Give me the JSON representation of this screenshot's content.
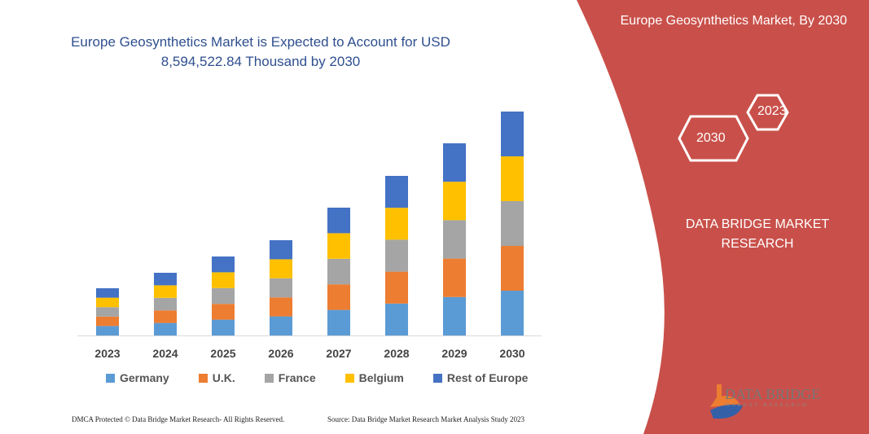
{
  "chart_data": {
    "type": "bar",
    "stacked": true,
    "title": "Europe Geosynthetics Market is Expected to Account for USD 8,594,522.84 Thousand by 2030",
    "categories": [
      "2023",
      "2024",
      "2025",
      "2026",
      "2027",
      "2028",
      "2029",
      "2030"
    ],
    "series": [
      {
        "name": "Germany",
        "color": "#5b9bd5",
        "values": [
          11.6,
          15.4,
          19.4,
          23.4,
          31.4,
          39.2,
          47.2,
          55
        ]
      },
      {
        "name": "U.K.",
        "color": "#ed7d31",
        "values": [
          11.6,
          15.4,
          19.4,
          23.4,
          31.4,
          39.2,
          47.2,
          55
        ]
      },
      {
        "name": "France",
        "color": "#a5a5a5",
        "values": [
          11.6,
          15.4,
          19.4,
          23.4,
          31.4,
          39.2,
          47.2,
          55
        ]
      },
      {
        "name": "Belgium",
        "color": "#ffc000",
        "values": [
          11.6,
          15.4,
          19.4,
          23.4,
          31.4,
          39.2,
          47.2,
          55
        ]
      },
      {
        "name": "Rest of Europe",
        "color": "#4472c4",
        "values": [
          11.6,
          15.4,
          19.4,
          23.4,
          31.4,
          39.2,
          47.2,
          55
        ]
      }
    ],
    "y_axis_shown": false,
    "grid": false,
    "legend_position": "bottom"
  },
  "panel": {
    "title": "Europe Geosynthetics Market, By 2030",
    "hex1": "2023",
    "hex2": "2030",
    "brand": "DATA BRIDGE MARKET RESEARCH",
    "color": "#c9504a"
  },
  "logo": {
    "name": "DATA BRIDGE",
    "tagline": "MARKET RESEARCH"
  },
  "footer": {
    "left": "DMCA Protected © Data Bridge Market Research-  All Rights Reserved.",
    "right": "Source: Data Bridge Market Research  Market Analysis Study 2023"
  }
}
